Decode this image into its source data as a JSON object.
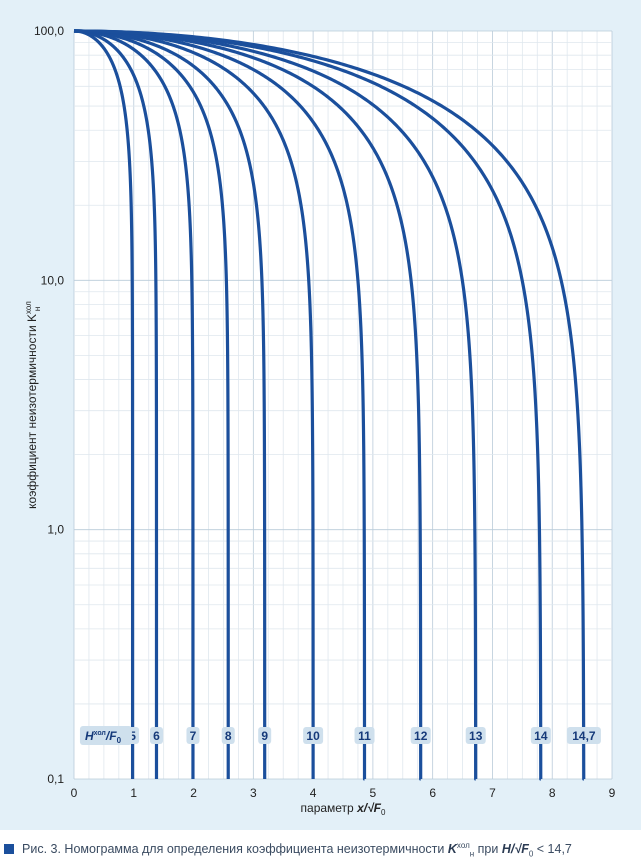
{
  "chart_data": {
    "type": "line",
    "ylabel": "коэффициент неизотермичности K",
    "ylabel_sup": "хол",
    "ylabel_sub": "н",
    "xlabel_prefix": "параметр ",
    "xlabel_var": "x/√F",
    "xlabel_sub": "0",
    "y_scale": "log",
    "xlim": [
      0,
      9
    ],
    "ylim": [
      0.1,
      100
    ],
    "x_ticks": [
      "0",
      "1",
      "2",
      "3",
      "4",
      "5",
      "6",
      "7",
      "8",
      "9"
    ],
    "y_ticks": [
      {
        "value": 100,
        "label": "100,0"
      },
      {
        "value": 10,
        "label": "10,0"
      },
      {
        "value": 1,
        "label": "1,0"
      },
      {
        "value": 0.1,
        "label": "0,1"
      }
    ],
    "grid": true,
    "curve_param_label": "H",
    "curve_param_label_sup": "хол",
    "curve_param_label_tail": "/F",
    "curve_param_label_sub": "0",
    "series": [
      {
        "name": "5",
        "x_end": 0.98
      },
      {
        "name": "6",
        "x_end": 1.38
      },
      {
        "name": "7",
        "x_end": 1.99
      },
      {
        "name": "8",
        "x_end": 2.58
      },
      {
        "name": "9",
        "x_end": 3.19
      },
      {
        "name": "10",
        "x_end": 4.0
      },
      {
        "name": "11",
        "x_end": 4.86
      },
      {
        "name": "12",
        "x_end": 5.8
      },
      {
        "name": "13",
        "x_end": 6.72
      },
      {
        "name": "14",
        "x_end": 7.81
      },
      {
        "name": "14,7",
        "x_end": 8.53
      }
    ],
    "color": "#1b4f9c"
  },
  "caption": {
    "text": "Рис. 3. Номограмма для определения коэффициента неизотермичности ",
    "k": "K",
    "k_sup": "хол",
    "k_sub": "н",
    "mid": " при ",
    "h": "H/√F",
    "h_sub": "0",
    "tail": " < 14,7"
  }
}
